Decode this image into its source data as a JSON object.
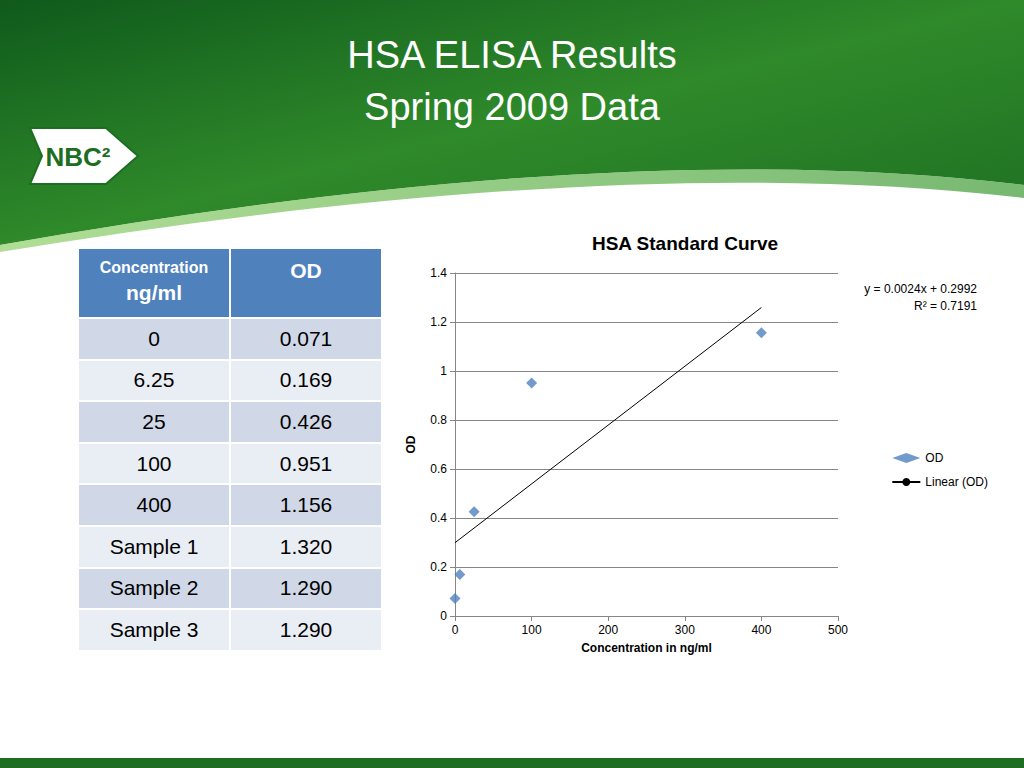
{
  "slide": {
    "title": [
      "HSA ELISA Results",
      "Spring 2009 Data"
    ],
    "logo": "NBC²"
  },
  "table": {
    "columns": [
      [
        "Concentration",
        "ng/ml"
      ],
      [
        "OD"
      ]
    ],
    "rows": [
      [
        "0",
        "0.071"
      ],
      [
        "6.25",
        "0.169"
      ],
      [
        "25",
        "0.426"
      ],
      [
        "100",
        "0.951"
      ],
      [
        "400",
        "1.156"
      ],
      [
        "Sample 1",
        "1.320"
      ],
      [
        "Sample 2",
        "1.290"
      ],
      [
        "Sample 3",
        "1.290"
      ]
    ]
  },
  "chart_data": {
    "type": "scatter",
    "title": "HSA Standard Curve",
    "x_label": "Concentration in ng/ml",
    "y_label": "OD",
    "series": [
      {
        "name": "OD",
        "type": "scatter",
        "color": "#4f81bd",
        "marker": "diamond",
        "x": [
          0,
          6.25,
          25,
          100,
          400
        ],
        "values": [
          0.071,
          0.169,
          0.426,
          0.951,
          1.156
        ]
      },
      {
        "name": "Linear (OD)",
        "type": "line",
        "color": "#000000",
        "line_style": "solid",
        "x": [
          0,
          400
        ],
        "values": [
          0.2992,
          1.2592
        ]
      }
    ],
    "annotations": [
      "y = 0.0024x + 0.2992",
      "R² = 0.7191"
    ],
    "xlim": [
      0,
      500
    ],
    "xticks": [
      0,
      100,
      200,
      300,
      400,
      500
    ],
    "ylim": [
      0,
      1.4
    ],
    "yticks": [
      0,
      0.2,
      0.4,
      0.6,
      0.8,
      1,
      1.2,
      1.4
    ],
    "grid": true,
    "legend": "right"
  }
}
